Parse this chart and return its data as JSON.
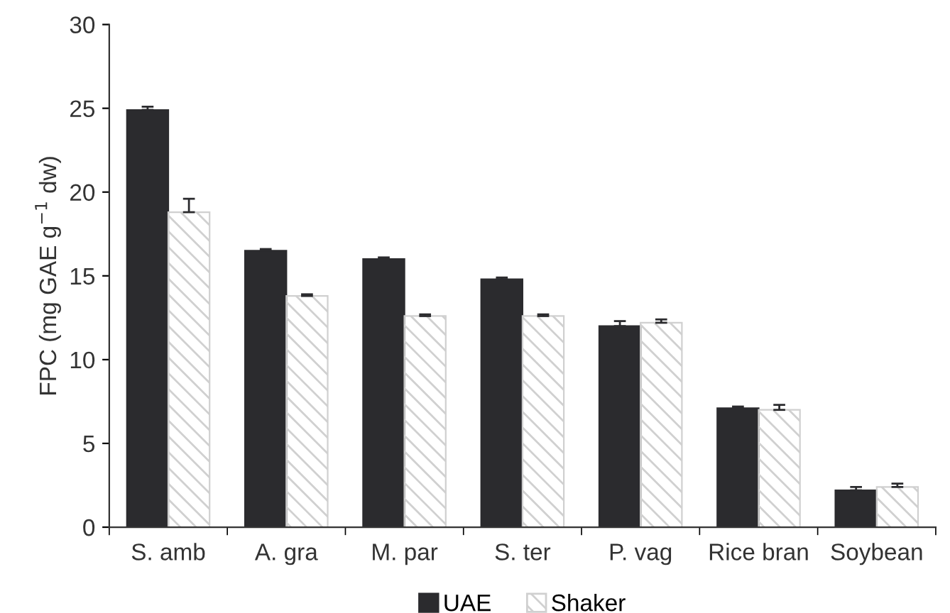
{
  "chart_data": {
    "type": "bar",
    "ylabel": "FPC (mg GAE g$^{−1}$ dw)",
    "categories": [
      "S. amb",
      "A. gra",
      "M. par",
      "S. ter",
      "P. vag",
      "Rice bran",
      "Soybean"
    ],
    "series": [
      {
        "name": "UAE",
        "color": "#2b2b2e",
        "values": [
          24.9,
          16.5,
          16.0,
          14.8,
          12.0,
          7.1,
          2.2
        ],
        "errors": [
          [
            24.9,
            25.1
          ],
          [
            16.5,
            16.6
          ],
          [
            16.0,
            16.1
          ],
          [
            14.8,
            14.9
          ],
          [
            12.0,
            12.3
          ],
          [
            7.1,
            7.2
          ],
          [
            2.2,
            2.4
          ]
        ]
      },
      {
        "name": "Shaker",
        "color": "#d0d0d0",
        "values": [
          18.8,
          13.8,
          12.6,
          12.6,
          12.2,
          7.0,
          2.4
        ],
        "errors": [
          [
            18.8,
            19.6
          ],
          [
            13.8,
            13.9
          ],
          [
            12.6,
            12.7
          ],
          [
            12.6,
            12.7
          ],
          [
            12.2,
            12.4
          ],
          [
            7.0,
            7.3
          ],
          [
            2.4,
            2.6
          ]
        ]
      }
    ],
    "ylim": [
      0,
      30
    ],
    "yticks": [
      0,
      5,
      10,
      15,
      20,
      25,
      30
    ],
    "grid": false,
    "legend": "bottom"
  }
}
